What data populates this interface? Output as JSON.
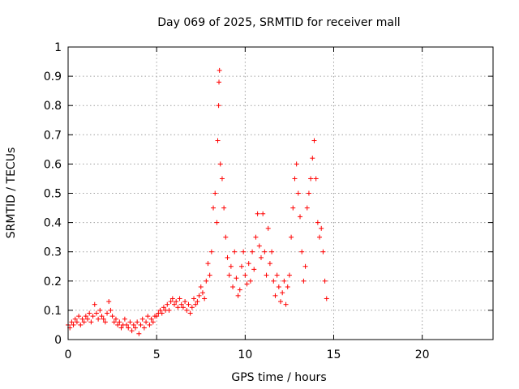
{
  "chart_data": {
    "type": "scatter",
    "title": "Day 069 of 2025, SRMTID for receiver mall",
    "xlabel": "GPS time / hours",
    "ylabel": "SRMTID / TECUs",
    "xlim": [
      0,
      24
    ],
    "ylim": [
      0,
      1
    ],
    "xticks": [
      0,
      5,
      10,
      15,
      20
    ],
    "xtick_labels": [
      "0",
      "5",
      "10",
      "15",
      "20"
    ],
    "yticks": [
      0,
      0.1,
      0.2,
      0.3,
      0.4,
      0.5,
      0.6,
      0.7,
      0.8,
      0.9,
      1
    ],
    "ytick_labels": [
      "0",
      "0.1",
      "0.2",
      "0.3",
      "0.4",
      "0.5",
      "0.6",
      "0.7",
      "0.8",
      "0.9",
      "1"
    ],
    "grid": true,
    "marker": "+",
    "color": "#ff0000",
    "series": [
      {
        "name": "SRMTID",
        "points": [
          [
            0.0,
            0.05
          ],
          [
            0.1,
            0.04
          ],
          [
            0.2,
            0.06
          ],
          [
            0.3,
            0.05
          ],
          [
            0.4,
            0.07
          ],
          [
            0.5,
            0.06
          ],
          [
            0.6,
            0.08
          ],
          [
            0.7,
            0.05
          ],
          [
            0.8,
            0.07
          ],
          [
            0.9,
            0.06
          ],
          [
            1.0,
            0.08
          ],
          [
            1.1,
            0.07
          ],
          [
            1.2,
            0.09
          ],
          [
            1.3,
            0.06
          ],
          [
            1.4,
            0.08
          ],
          [
            1.5,
            0.12
          ],
          [
            1.6,
            0.09
          ],
          [
            1.7,
            0.07
          ],
          [
            1.8,
            0.1
          ],
          [
            1.9,
            0.08
          ],
          [
            2.0,
            0.07
          ],
          [
            2.1,
            0.06
          ],
          [
            2.2,
            0.09
          ],
          [
            2.3,
            0.13
          ],
          [
            2.4,
            0.1
          ],
          [
            2.5,
            0.08
          ],
          [
            2.6,
            0.06
          ],
          [
            2.7,
            0.07
          ],
          [
            2.8,
            0.05
          ],
          [
            2.9,
            0.06
          ],
          [
            3.0,
            0.04
          ],
          [
            3.1,
            0.05
          ],
          [
            3.2,
            0.07
          ],
          [
            3.3,
            0.05
          ],
          [
            3.4,
            0.04
          ],
          [
            3.5,
            0.06
          ],
          [
            3.6,
            0.03
          ],
          [
            3.7,
            0.05
          ],
          [
            3.8,
            0.04
          ],
          [
            3.9,
            0.06
          ],
          [
            4.0,
            0.02
          ],
          [
            4.1,
            0.05
          ],
          [
            4.2,
            0.07
          ],
          [
            4.3,
            0.04
          ],
          [
            4.4,
            0.06
          ],
          [
            4.5,
            0.08
          ],
          [
            4.6,
            0.05
          ],
          [
            4.7,
            0.07
          ],
          [
            4.8,
            0.06
          ],
          [
            4.9,
            0.08
          ],
          [
            5.0,
            0.08
          ],
          [
            5.1,
            0.09
          ],
          [
            5.2,
            0.1
          ],
          [
            5.3,
            0.09
          ],
          [
            5.4,
            0.11
          ],
          [
            5.5,
            0.1
          ],
          [
            5.6,
            0.12
          ],
          [
            5.7,
            0.1
          ],
          [
            5.8,
            0.13
          ],
          [
            5.9,
            0.14
          ],
          [
            6.0,
            0.12
          ],
          [
            6.1,
            0.13
          ],
          [
            6.2,
            0.11
          ],
          [
            6.3,
            0.14
          ],
          [
            6.4,
            0.12
          ],
          [
            6.5,
            0.11
          ],
          [
            6.6,
            0.13
          ],
          [
            6.7,
            0.1
          ],
          [
            6.8,
            0.12
          ],
          [
            6.9,
            0.09
          ],
          [
            7.0,
            0.11
          ],
          [
            7.1,
            0.14
          ],
          [
            7.2,
            0.12
          ],
          [
            7.3,
            0.13
          ],
          [
            7.4,
            0.15
          ],
          [
            7.5,
            0.18
          ],
          [
            7.6,
            0.16
          ],
          [
            7.7,
            0.14
          ],
          [
            7.8,
            0.2
          ],
          [
            7.9,
            0.26
          ],
          [
            8.0,
            0.22
          ],
          [
            8.1,
            0.3
          ],
          [
            8.2,
            0.45
          ],
          [
            8.3,
            0.5
          ],
          [
            8.4,
            0.4
          ],
          [
            8.45,
            0.68
          ],
          [
            8.5,
            0.8
          ],
          [
            8.52,
            0.88
          ],
          [
            8.55,
            0.92
          ],
          [
            8.6,
            0.6
          ],
          [
            8.7,
            0.55
          ],
          [
            8.8,
            0.45
          ],
          [
            8.9,
            0.35
          ],
          [
            9.0,
            0.28
          ],
          [
            9.1,
            0.22
          ],
          [
            9.2,
            0.25
          ],
          [
            9.3,
            0.18
          ],
          [
            9.4,
            0.3
          ],
          [
            9.5,
            0.21
          ],
          [
            9.6,
            0.15
          ],
          [
            9.7,
            0.17
          ],
          [
            9.8,
            0.25
          ],
          [
            9.9,
            0.3
          ],
          [
            10.0,
            0.22
          ],
          [
            10.1,
            0.19
          ],
          [
            10.2,
            0.26
          ],
          [
            10.3,
            0.2
          ],
          [
            10.4,
            0.3
          ],
          [
            10.5,
            0.24
          ],
          [
            10.6,
            0.35
          ],
          [
            10.7,
            0.43
          ],
          [
            10.8,
            0.32
          ],
          [
            10.9,
            0.28
          ],
          [
            11.0,
            0.43
          ],
          [
            11.1,
            0.3
          ],
          [
            11.2,
            0.22
          ],
          [
            11.3,
            0.38
          ],
          [
            11.4,
            0.26
          ],
          [
            11.5,
            0.3
          ],
          [
            11.6,
            0.2
          ],
          [
            11.7,
            0.15
          ],
          [
            11.8,
            0.22
          ],
          [
            11.9,
            0.18
          ],
          [
            12.0,
            0.13
          ],
          [
            12.1,
            0.16
          ],
          [
            12.2,
            0.2
          ],
          [
            12.3,
            0.12
          ],
          [
            12.4,
            0.18
          ],
          [
            12.5,
            0.22
          ],
          [
            12.6,
            0.35
          ],
          [
            12.7,
            0.45
          ],
          [
            12.8,
            0.55
          ],
          [
            12.9,
            0.6
          ],
          [
            13.0,
            0.5
          ],
          [
            13.1,
            0.42
          ],
          [
            13.2,
            0.3
          ],
          [
            13.3,
            0.2
          ],
          [
            13.4,
            0.25
          ],
          [
            13.5,
            0.45
          ],
          [
            13.6,
            0.5
          ],
          [
            13.7,
            0.55
          ],
          [
            13.8,
            0.62
          ],
          [
            13.9,
            0.68
          ],
          [
            14.0,
            0.55
          ],
          [
            14.1,
            0.4
          ],
          [
            14.2,
            0.35
          ],
          [
            14.3,
            0.38
          ],
          [
            14.4,
            0.3
          ],
          [
            14.5,
            0.2
          ],
          [
            14.6,
            0.14
          ]
        ]
      }
    ]
  }
}
